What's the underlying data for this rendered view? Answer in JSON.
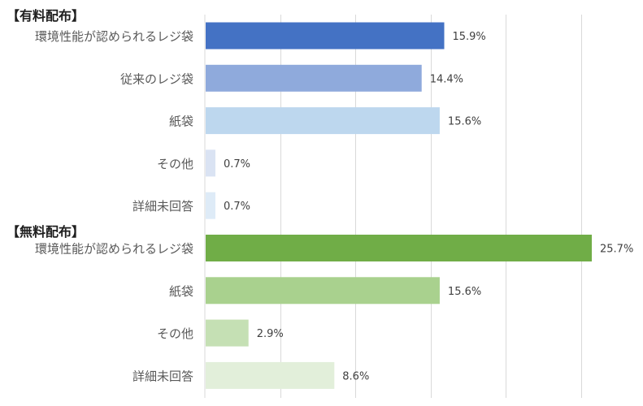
{
  "chart_data": {
    "type": "bar",
    "orientation": "horizontal",
    "xlim": [
      0,
      30
    ],
    "grid": true,
    "groups": [
      {
        "title": "【有料配布】",
        "bars": [
          {
            "category": "環境性能が認められるレジ袋",
            "value": 15.9,
            "label": "15.9%",
            "color": "#4472C4"
          },
          {
            "category": "従来のレジ袋",
            "value": 14.4,
            "label": "14.4%",
            "color": "#8FAADC"
          },
          {
            "category": "紙袋",
            "value": 15.6,
            "label": "15.6%",
            "color": "#BDD7EE"
          },
          {
            "category": "その他",
            "value": 0.7,
            "label": "0.7%",
            "color": "#DAE3F3"
          },
          {
            "category": "詳細未回答",
            "value": 0.7,
            "label": "0.7%",
            "color": "#DEEBF7"
          }
        ]
      },
      {
        "title": "【無料配布】",
        "bars": [
          {
            "category": "環境性能が認められるレジ袋",
            "value": 25.7,
            "label": "25.7%",
            "color": "#70AD47"
          },
          {
            "category": "紙袋",
            "value": 15.6,
            "label": "15.6%",
            "color": "#A9D18E"
          },
          {
            "category": "その他",
            "value": 2.9,
            "label": "2.9%",
            "color": "#C5E0B4"
          },
          {
            "category": "詳細未回答",
            "value": 8.6,
            "label": "8.6%",
            "color": "#E2EFDA"
          }
        ]
      }
    ]
  }
}
